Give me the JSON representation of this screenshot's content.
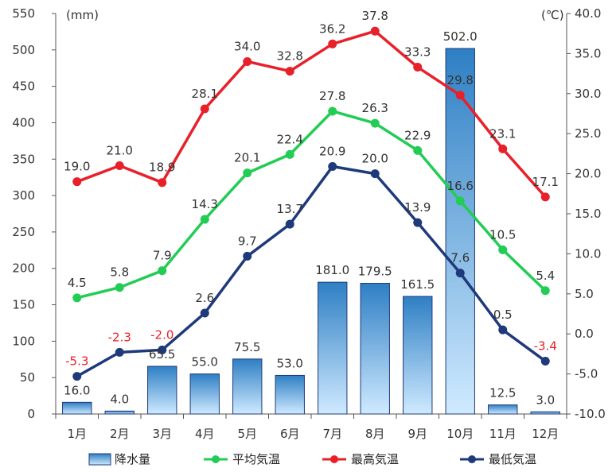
{
  "chart_data": {
    "type": "bar+line",
    "categories": [
      "1月",
      "2月",
      "3月",
      "4月",
      "5月",
      "6月",
      "7月",
      "8月",
      "9月",
      "10月",
      "11月",
      "12月"
    ],
    "left_axis": {
      "unit": "(mm)",
      "ylim": [
        0,
        550
      ],
      "ticks": [
        "0",
        "50",
        "100",
        "150",
        "200",
        "250",
        "300",
        "350",
        "400",
        "450",
        "500",
        "550"
      ]
    },
    "right_axis": {
      "unit": "(℃)",
      "ylim": [
        -10,
        40
      ],
      "ticks": [
        "-10.0",
        "-5.0",
        "0.0",
        "5.0",
        "10.0",
        "15.0",
        "20.0",
        "25.0",
        "30.0",
        "35.0",
        "40.0"
      ]
    },
    "bars": {
      "name": "降水量",
      "values": [
        16.0,
        4.0,
        65.5,
        55.0,
        75.5,
        53.0,
        181.0,
        179.5,
        161.5,
        502.0,
        12.5,
        3.0
      ],
      "labels": [
        "16.0",
        "4.0",
        "65.5",
        "55.0",
        "75.5",
        "53.0",
        "181.0",
        "179.5",
        "161.5",
        "502.0",
        "12.5",
        "3.0"
      ]
    },
    "series": [
      {
        "name": "最高気温",
        "color": "#e8202a",
        "values": [
          19.0,
          21.0,
          18.9,
          28.1,
          34.0,
          32.8,
          36.2,
          37.8,
          33.3,
          29.8,
          23.1,
          17.1
        ],
        "labels": [
          "19.0",
          "21.0",
          "18.9",
          "28.1",
          "34.0",
          "32.8",
          "36.2",
          "37.8",
          "33.3",
          "29.8",
          "23.1",
          "17.1"
        ]
      },
      {
        "name": "平均気温",
        "color": "#22cc55",
        "values": [
          4.5,
          5.8,
          7.9,
          14.3,
          20.1,
          22.4,
          27.8,
          26.3,
          22.9,
          16.6,
          10.5,
          5.4
        ],
        "labels": [
          "4.5",
          "5.8",
          "7.9",
          "14.3",
          "20.1",
          "22.4",
          "27.8",
          "26.3",
          "22.9",
          "16.6",
          "10.5",
          "5.4"
        ]
      },
      {
        "name": "最低気温",
        "color": "#1f3a7a",
        "values": [
          -5.3,
          -2.3,
          -2.0,
          2.6,
          9.7,
          13.7,
          20.9,
          20.0,
          13.9,
          7.6,
          0.5,
          -3.4
        ],
        "labels": [
          "-5.3",
          "-2.3",
          "-2.0",
          "2.6",
          "9.7",
          "13.7",
          "20.9",
          "20.0",
          "13.9",
          "7.6",
          "0.5",
          "-3.4"
        ]
      }
    ],
    "negative_label_color": "#e8202a",
    "legend": [
      "降水量",
      "平均気温",
      "最高気温",
      "最低気温"
    ],
    "legend_position": "bottom",
    "grid": false
  }
}
